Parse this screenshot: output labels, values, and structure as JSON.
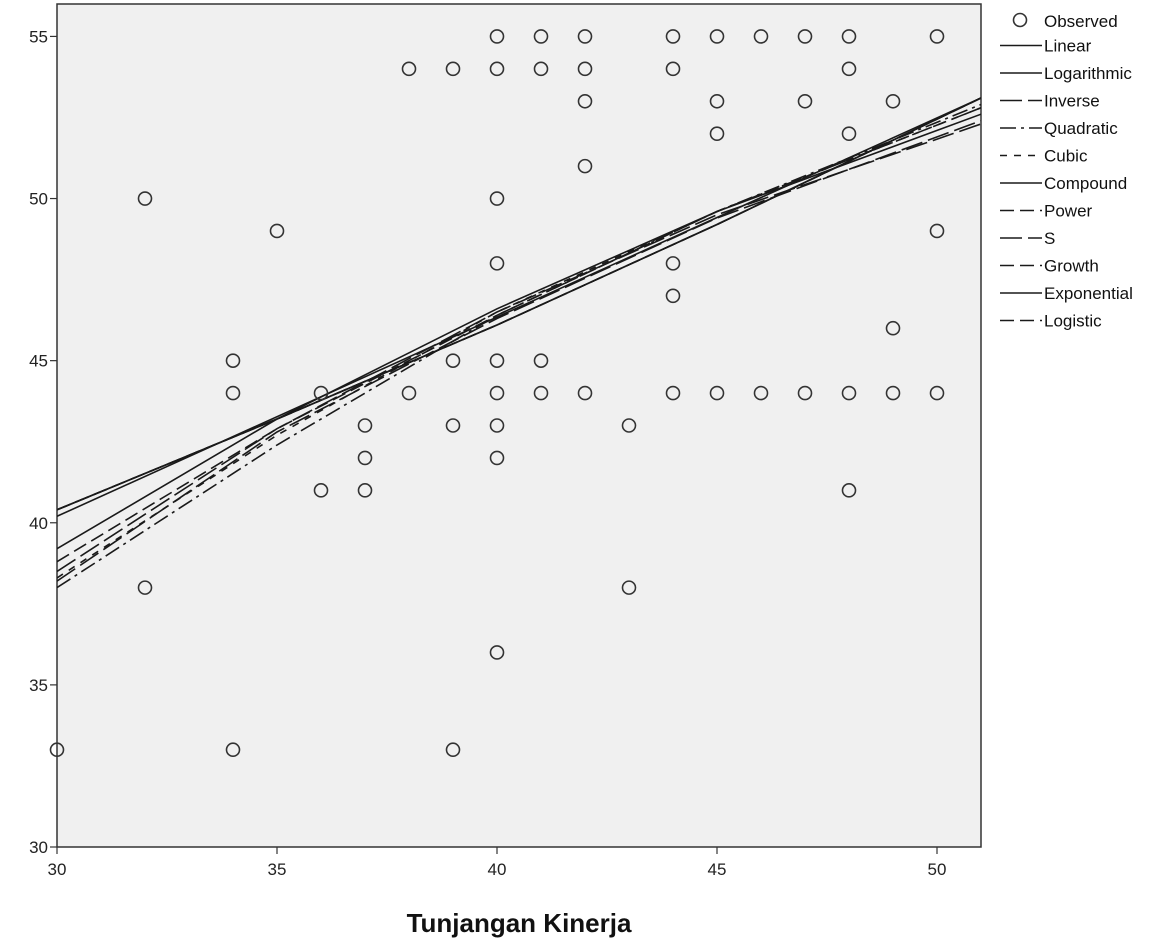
{
  "chart_data": {
    "type": "scatter",
    "title": "",
    "xlabel": "Tunjangan Kinerja",
    "ylabel": "",
    "xlim": [
      30,
      51
    ],
    "ylim": [
      30,
      56
    ],
    "x_ticks": [
      "30",
      "35",
      "40",
      "45",
      "50"
    ],
    "y_ticks": [
      "30",
      "35",
      "40",
      "45",
      "50",
      "55"
    ],
    "grid": false,
    "legend_position": "outside right",
    "background_color": "#f0f0f0",
    "marker_color": "#333333",
    "observed": {
      "name": "Observed",
      "points": [
        [
          30,
          33
        ],
        [
          32,
          50
        ],
        [
          32,
          38
        ],
        [
          34,
          45
        ],
        [
          34,
          44
        ],
        [
          34,
          33
        ],
        [
          35,
          49
        ],
        [
          36,
          44
        ],
        [
          36,
          41
        ],
        [
          37,
          43
        ],
        [
          37,
          42
        ],
        [
          37,
          41
        ],
        [
          38,
          54
        ],
        [
          38,
          44
        ],
        [
          39,
          54
        ],
        [
          39,
          45
        ],
        [
          39,
          43
        ],
        [
          39,
          33
        ],
        [
          40,
          55
        ],
        [
          40,
          54
        ],
        [
          40,
          50
        ],
        [
          40,
          48
        ],
        [
          40,
          45
        ],
        [
          40,
          44
        ],
        [
          40,
          43
        ],
        [
          40,
          42
        ],
        [
          40,
          36
        ],
        [
          41,
          55
        ],
        [
          41,
          54
        ],
        [
          41,
          45
        ],
        [
          41,
          44
        ],
        [
          42,
          55
        ],
        [
          42,
          54
        ],
        [
          42,
          53
        ],
        [
          42,
          51
        ],
        [
          42,
          44
        ],
        [
          43,
          43
        ],
        [
          43,
          38
        ],
        [
          44,
          55
        ],
        [
          44,
          54
        ],
        [
          44,
          48
        ],
        [
          44,
          47
        ],
        [
          44,
          44
        ],
        [
          45,
          55
        ],
        [
          45,
          53
        ],
        [
          45,
          52
        ],
        [
          45,
          44
        ],
        [
          46,
          55
        ],
        [
          46,
          44
        ],
        [
          47,
          55
        ],
        [
          47,
          53
        ],
        [
          47,
          44
        ],
        [
          48,
          55
        ],
        [
          48,
          54
        ],
        [
          48,
          52
        ],
        [
          48,
          44
        ],
        [
          48,
          41
        ],
        [
          49,
          53
        ],
        [
          49,
          46
        ],
        [
          49,
          44
        ],
        [
          50,
          55
        ],
        [
          50,
          49
        ],
        [
          50,
          44
        ]
      ]
    },
    "series": [
      {
        "name": "Linear",
        "dash": "solid",
        "x": [
          30,
          51
        ],
        "y": [
          40.2,
          53.1
        ]
      },
      {
        "name": "Logarithmic",
        "dash": "solid",
        "x": [
          30,
          35,
          40,
          45,
          51
        ],
        "y": [
          39.2,
          43.2,
          46.6,
          49.6,
          52.6
        ]
      },
      {
        "name": "Inverse",
        "dash": "longdash",
        "x": [
          30,
          35,
          40,
          45,
          51
        ],
        "y": [
          38.2,
          42.8,
          46.3,
          49.4,
          52.4
        ]
      },
      {
        "name": "Quadratic",
        "dash": "dashdot",
        "x": [
          30,
          35,
          40,
          45,
          51
        ],
        "y": [
          38.0,
          42.4,
          46.4,
          49.6,
          52.9
        ]
      },
      {
        "name": "Cubic",
        "dash": "shortdash",
        "x": [
          30,
          35,
          40,
          45,
          51
        ],
        "y": [
          38.3,
          42.7,
          46.5,
          49.6,
          52.8
        ]
      },
      {
        "name": "Compound",
        "dash": "solid",
        "x": [
          30,
          35,
          40,
          45,
          51
        ],
        "y": [
          40.4,
          43.2,
          46.1,
          49.2,
          53.1
        ]
      },
      {
        "name": "Power",
        "dash": "dash",
        "x": [
          30,
          35,
          40,
          45,
          51
        ],
        "y": [
          38.8,
          42.9,
          46.4,
          49.6,
          52.8
        ]
      },
      {
        "name": "S",
        "dash": "longdash",
        "x": [
          30,
          35,
          40,
          45,
          51
        ],
        "y": [
          38.5,
          42.9,
          46.5,
          49.5,
          52.3
        ]
      },
      {
        "name": "Growth",
        "dash": "dash",
        "x": [
          30,
          35,
          40,
          45,
          51
        ],
        "y": [
          40.4,
          43.2,
          46.1,
          49.2,
          53.1
        ]
      },
      {
        "name": "Exponential",
        "dash": "solid",
        "x": [
          30,
          35,
          40,
          45,
          51
        ],
        "y": [
          40.4,
          43.2,
          46.1,
          49.2,
          53.1
        ]
      },
      {
        "name": "Logistic",
        "dash": "dash",
        "x": [
          30,
          35,
          40,
          45,
          51
        ],
        "y": [
          40.4,
          43.2,
          46.1,
          49.2,
          53.1
        ]
      }
    ]
  }
}
